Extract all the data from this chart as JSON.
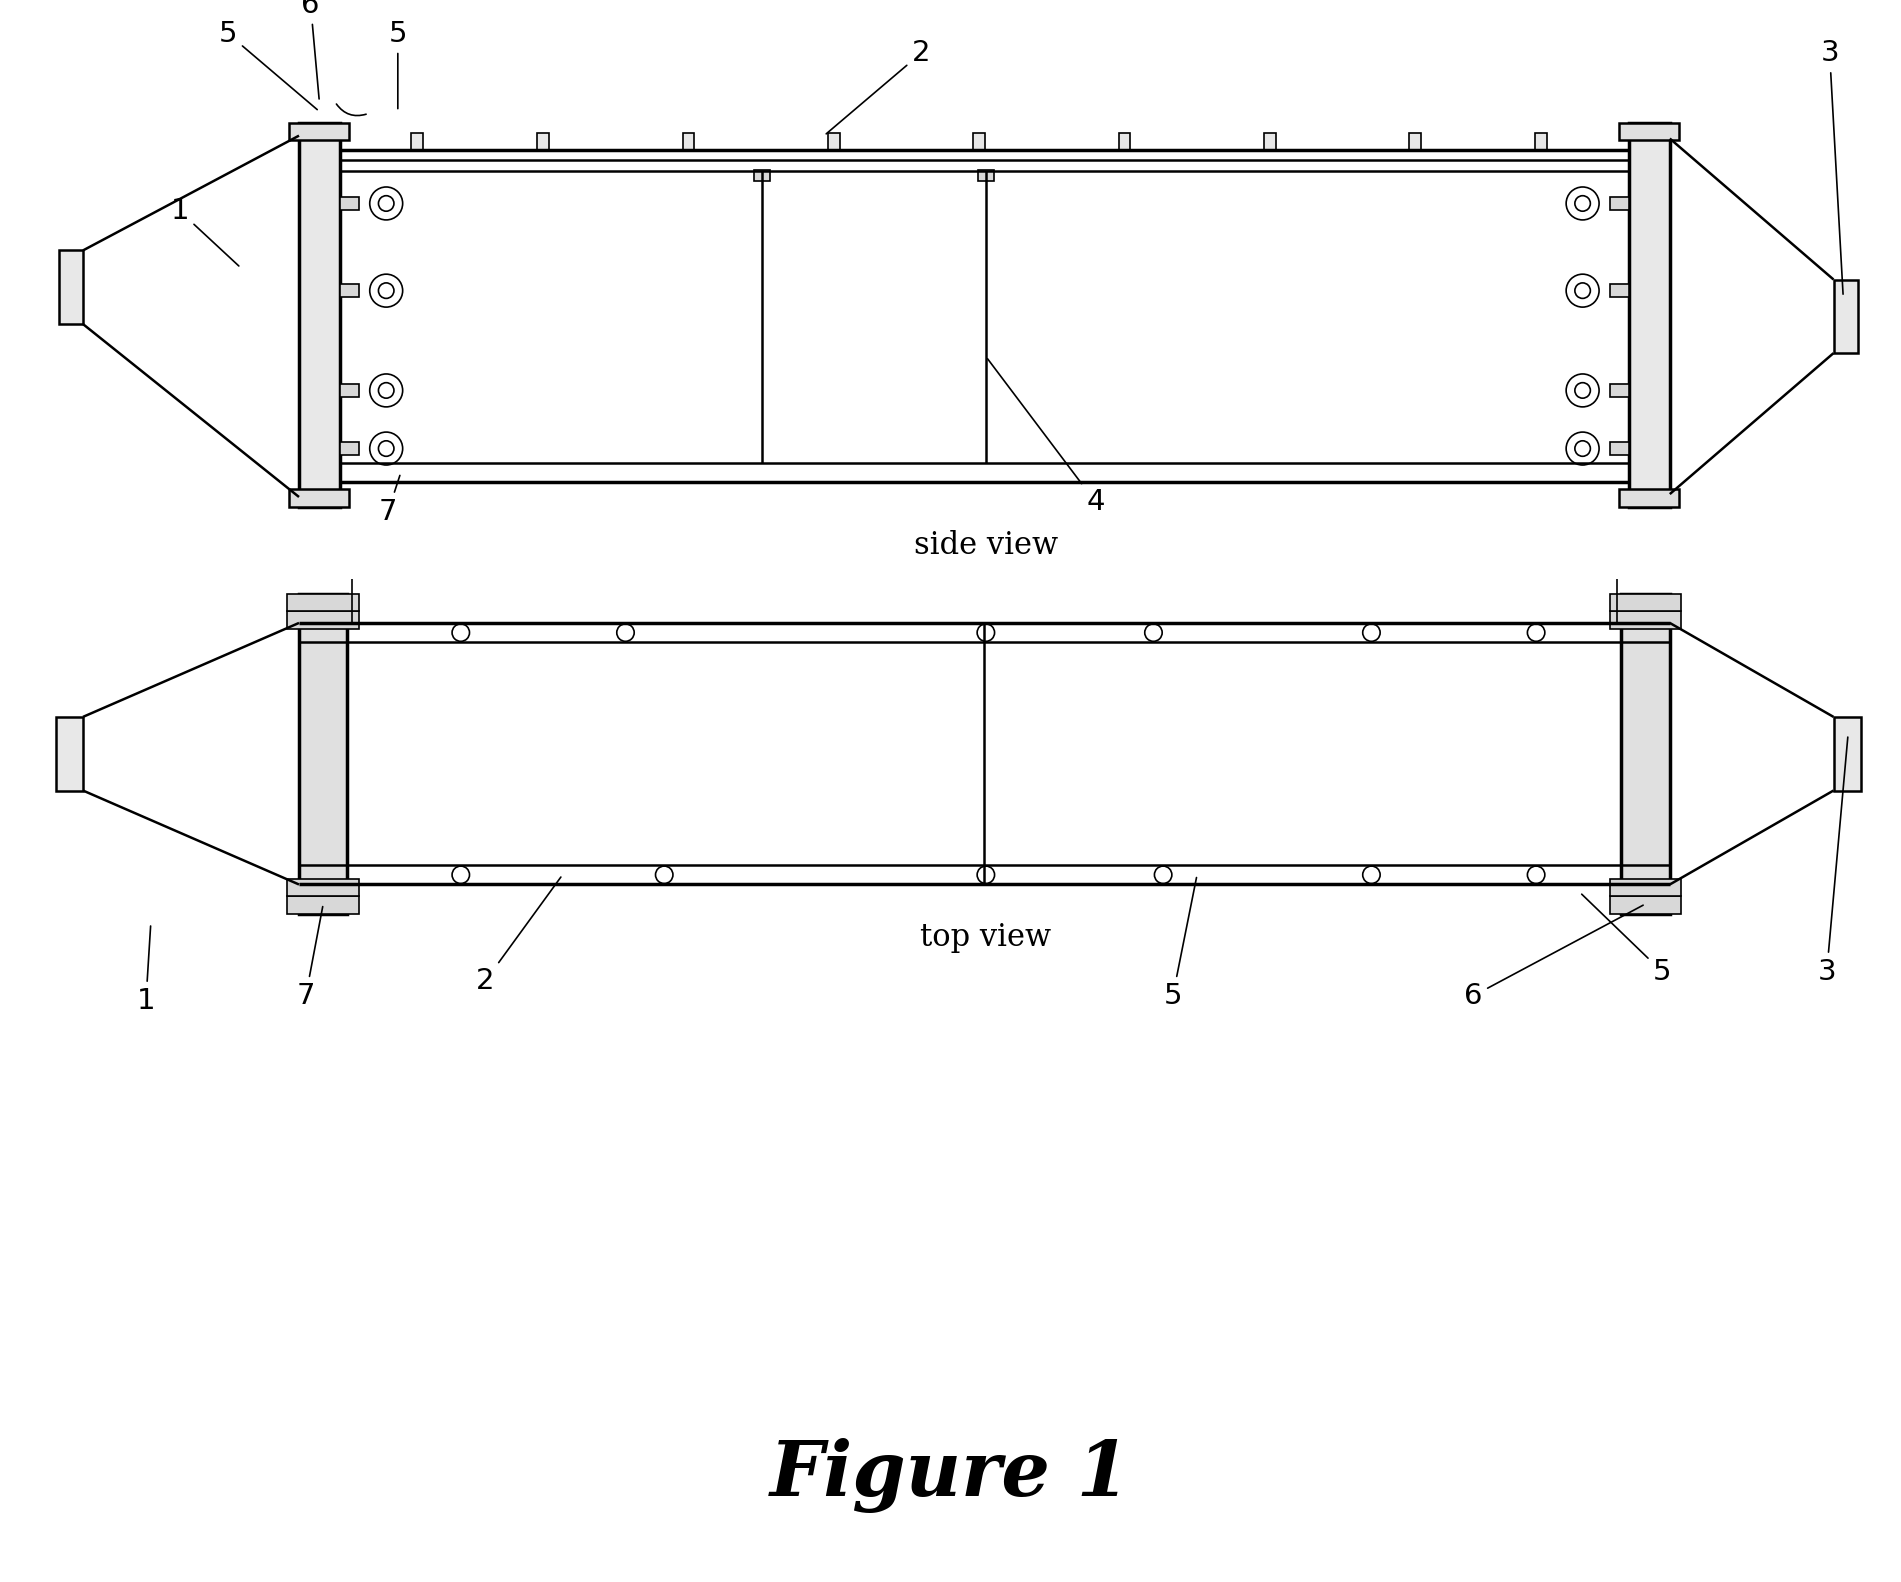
{
  "bg_color": "#ffffff",
  "line_color": "#000000",
  "fig_title": "Figure 1",
  "side_view_label": "side view",
  "top_view_label": "top view"
}
